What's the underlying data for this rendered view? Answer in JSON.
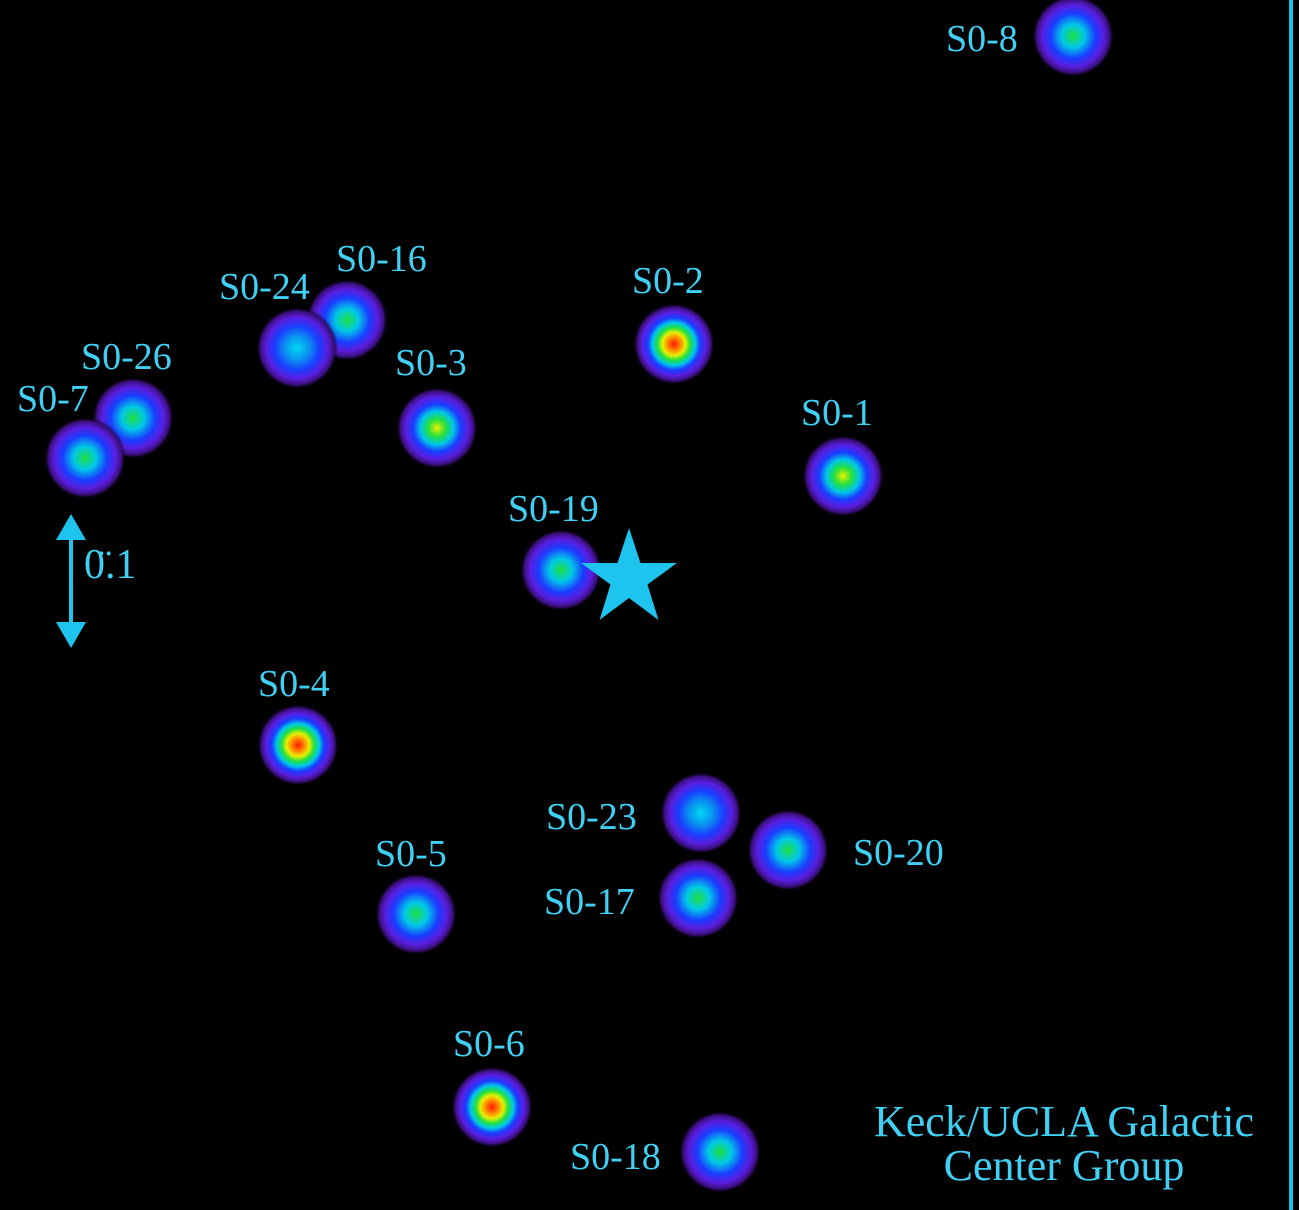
{
  "credit": {
    "line1": "Keck/UCLA Galactic",
    "line2": "Center Group"
  },
  "scale_bar": {
    "label": "0.\"1",
    "display": "0̈.1"
  },
  "colors": {
    "label": "#3fd0f4",
    "star_marker": "#1ec3ee",
    "background": "#000000"
  },
  "central_marker": {
    "icon": "star-icon"
  },
  "stars": [
    {
      "name": "S0-8",
      "peak": "green"
    },
    {
      "name": "S0-16",
      "peak": "green"
    },
    {
      "name": "S0-24",
      "peak": "cyan"
    },
    {
      "name": "S0-2",
      "peak": "red"
    },
    {
      "name": "S0-26",
      "peak": "green"
    },
    {
      "name": "S0-3",
      "peak": "yellow"
    },
    {
      "name": "S0-7",
      "peak": "green"
    },
    {
      "name": "S0-1",
      "peak": "yellow"
    },
    {
      "name": "S0-19",
      "peak": "green"
    },
    {
      "name": "S0-4",
      "peak": "red"
    },
    {
      "name": "S0-23",
      "peak": "cyan"
    },
    {
      "name": "S0-20",
      "peak": "green"
    },
    {
      "name": "S0-5",
      "peak": "green"
    },
    {
      "name": "S0-17",
      "peak": "green"
    },
    {
      "name": "S0-6",
      "peak": "red"
    },
    {
      "name": "S0-18",
      "peak": "green"
    }
  ]
}
